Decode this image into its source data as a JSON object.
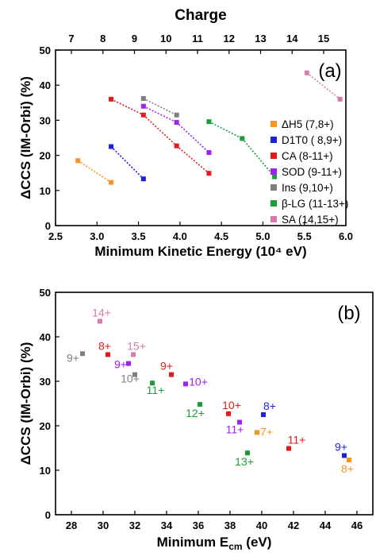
{
  "chart_data": [
    {
      "panel_label": "(a)",
      "type": "scatter",
      "top_axis_title": "Charge",
      "top_ticks": [
        7,
        8,
        9,
        10,
        11,
        12,
        13,
        14,
        15
      ],
      "xlabel": "Minimum Kinetic Energy (10⁴ eV)",
      "ylabel": "ΔCCS (IM-Orbi) (%)",
      "xlim": [
        2.5,
        6.0
      ],
      "ylim": [
        0,
        50
      ],
      "xticks": [
        "2.5",
        "3.0",
        "3.5",
        "4.0",
        "4.5",
        "5.0",
        "5.5",
        "6.0"
      ],
      "yticks": [
        "0",
        "10",
        "20",
        "30",
        "40",
        "50"
      ],
      "grid": false,
      "legend_position": "right",
      "series": [
        {
          "name": "ΔH5 (7,8+)",
          "color": "#f7941d",
          "points": [
            [
              2.77,
              18.5
            ],
            [
              3.17,
              12.3
            ]
          ]
        },
        {
          "name": "D1T0 ( 8,9+)",
          "color": "#1f1fe0",
          "points": [
            [
              3.17,
              22.5
            ],
            [
              3.56,
              13.3
            ]
          ]
        },
        {
          "name": "CA (8-11+)",
          "color": "#e31a1c",
          "points": [
            [
              3.17,
              36.0
            ],
            [
              3.56,
              31.5
            ],
            [
              3.96,
              22.7
            ],
            [
              4.35,
              14.9
            ]
          ]
        },
        {
          "name": "SOD (9-11+)",
          "color": "#a020f0",
          "points": [
            [
              3.56,
              34.0
            ],
            [
              3.96,
              29.4
            ],
            [
              4.35,
              20.8
            ]
          ]
        },
        {
          "name": "Ins (9,10+)",
          "color": "#808080",
          "points": [
            [
              3.56,
              36.2
            ],
            [
              3.96,
              31.5
            ]
          ]
        },
        {
          "name": "β-LG (11-13+)",
          "color": "#1a9e3a",
          "points": [
            [
              4.35,
              29.6
            ],
            [
              4.75,
              24.8
            ],
            [
              5.14,
              13.9
            ]
          ]
        },
        {
          "name": "SA (14,15+)",
          "color": "#d87ab0",
          "points": [
            [
              5.53,
              43.5
            ],
            [
              5.93,
              36.0
            ]
          ]
        }
      ]
    },
    {
      "panel_label": "(b)",
      "type": "scatter",
      "xlabel": "Minimum E",
      "xlabel_sub": "cm",
      "xlabel_suffix": " (eV)",
      "ylabel": "ΔCCS (IM-Orbi) (%)",
      "xlim": [
        27,
        47
      ],
      "ylim": [
        0,
        50
      ],
      "xticks": [
        "28",
        "30",
        "32",
        "34",
        "36",
        "38",
        "40",
        "42",
        "44",
        "46"
      ],
      "yticks": [
        "0",
        "10",
        "20",
        "30",
        "40",
        "50"
      ],
      "grid": false,
      "points": [
        {
          "x": 29.8,
          "y": 43.5,
          "label": "14+",
          "color": "#d87ab0"
        },
        {
          "x": 28.7,
          "y": 36.2,
          "label": "9+",
          "color": "#808080"
        },
        {
          "x": 30.3,
          "y": 36.0,
          "label": "8+",
          "color": "#e31a1c"
        },
        {
          "x": 31.9,
          "y": 36.0,
          "label": "15+",
          "color": "#d87ab0"
        },
        {
          "x": 31.6,
          "y": 34.0,
          "label": "9+",
          "color": "#a020f0"
        },
        {
          "x": 32.0,
          "y": 31.5,
          "label": "10+",
          "color": "#808080"
        },
        {
          "x": 34.3,
          "y": 31.5,
          "label": "9+",
          "color": "#e31a1c"
        },
        {
          "x": 33.1,
          "y": 29.6,
          "label": "11+",
          "color": "#1a9e3a"
        },
        {
          "x": 35.2,
          "y": 29.4,
          "label": "10+",
          "color": "#a020f0"
        },
        {
          "x": 36.1,
          "y": 24.8,
          "label": "12+",
          "color": "#1a9e3a"
        },
        {
          "x": 37.9,
          "y": 22.7,
          "label": "10+",
          "color": "#e31a1c"
        },
        {
          "x": 40.1,
          "y": 22.5,
          "label": "8+",
          "color": "#1f1fe0"
        },
        {
          "x": 38.6,
          "y": 20.8,
          "label": "11+",
          "color": "#a020f0"
        },
        {
          "x": 39.7,
          "y": 18.5,
          "label": "7+",
          "color": "#f7941d"
        },
        {
          "x": 41.7,
          "y": 14.9,
          "label": "11+",
          "color": "#e31a1c"
        },
        {
          "x": 39.1,
          "y": 13.9,
          "label": "13+",
          "color": "#1a9e3a"
        },
        {
          "x": 45.2,
          "y": 13.3,
          "label": "9+",
          "color": "#1f1fe0"
        },
        {
          "x": 45.5,
          "y": 12.3,
          "label": "8+",
          "color": "#f7941d"
        }
      ]
    }
  ]
}
